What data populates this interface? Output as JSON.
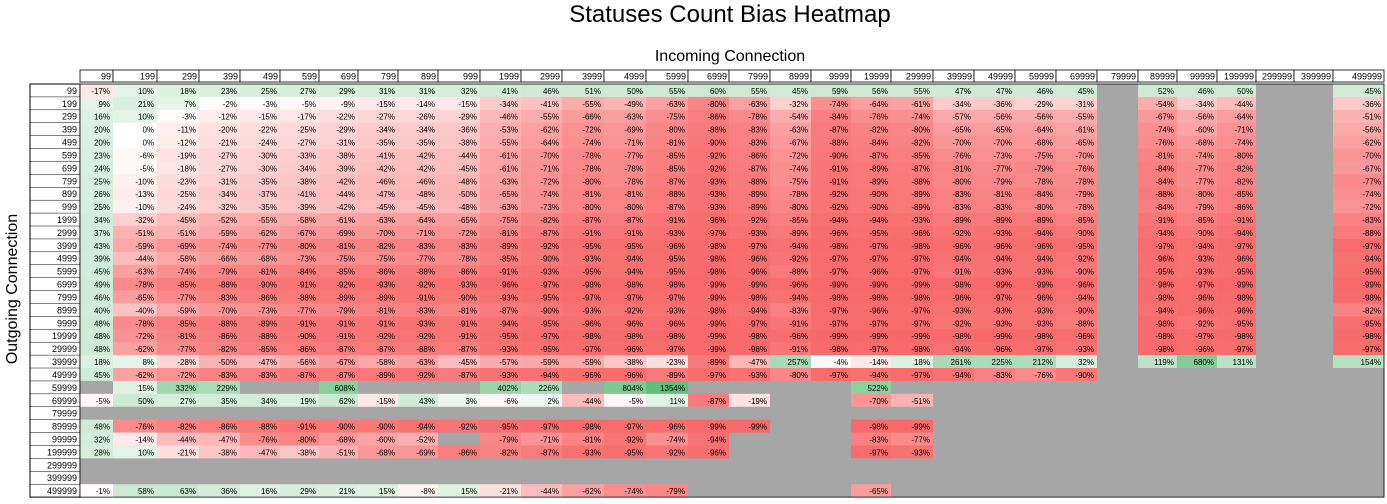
{
  "chart_data": {
    "type": "heatmap",
    "title": "Statuses Count Bias Heatmap",
    "xlabel": "Incoming Connection",
    "ylabel": "Outgoing Connection",
    "x": [
      "99",
      "199",
      "299",
      "399",
      "499",
      "599",
      "699",
      "799",
      "899",
      "999",
      "1999",
      "2999",
      "3999",
      "4999",
      "5999",
      "6999",
      "7999",
      "8999",
      "9999",
      "19999",
      "29999",
      "39999",
      "49999",
      "59999",
      "69999",
      "79999",
      "89999",
      "99999",
      "199999",
      "299999",
      "399999",
      "499999"
    ],
    "y": [
      "99",
      "199",
      "299",
      "399",
      "499",
      "599",
      "699",
      "799",
      "899",
      "999",
      "1999",
      "2999",
      "3999",
      "4999",
      "5999",
      "6999",
      "7999",
      "8999",
      "9999",
      "19999",
      "29999",
      "39999",
      "49999",
      "59999",
      "69999",
      "79999",
      "89999",
      "99999",
      "199999",
      "299999",
      "399999",
      "499999"
    ],
    "value_format": "percent",
    "missing_color": "#A6A6A6",
    "color_scale": {
      "min_color": "#F8696B",
      "mid_color": "#FFFFFF",
      "max_color": "#63BE7B",
      "mid_value": 0
    },
    "values": [
      [
        -17,
        10,
        18,
        23,
        25,
        27,
        29,
        31,
        31,
        32,
        41,
        46,
        51,
        50,
        55,
        60,
        55,
        45,
        59,
        56,
        55,
        47,
        47,
        46,
        45,
        null,
        52,
        46,
        50,
        null,
        null,
        45
      ],
      [
        9,
        21,
        7,
        -2,
        -3,
        -5,
        -9,
        -15,
        -14,
        -15,
        -34,
        -41,
        -55,
        -49,
        -63,
        -80,
        -63,
        -32,
        -74,
        -64,
        -61,
        -34,
        -36,
        -29,
        -31,
        null,
        -54,
        -34,
        -44,
        null,
        null,
        -36
      ],
      [
        16,
        10,
        -3,
        -12,
        -15,
        -17,
        -22,
        -27,
        -26,
        -29,
        -46,
        -55,
        -66,
        -63,
        -75,
        -86,
        -78,
        -54,
        -84,
        -76,
        -74,
        -57,
        -56,
        -56,
        -55,
        null,
        -67,
        -56,
        -64,
        null,
        null,
        -51
      ],
      [
        20,
        0,
        -11,
        -20,
        -22,
        -25,
        -29,
        -34,
        -34,
        -36,
        -53,
        -62,
        -72,
        -69,
        -80,
        -88,
        -83,
        -63,
        -87,
        -82,
        -80,
        -65,
        -65,
        -64,
        -61,
        null,
        -74,
        -60,
        -71,
        null,
        null,
        -56
      ],
      [
        20,
        0,
        -12,
        -21,
        -24,
        -27,
        -31,
        -35,
        -35,
        -38,
        -55,
        -64,
        -74,
        -71,
        -81,
        -90,
        -83,
        -67,
        -88,
        -84,
        -82,
        -70,
        -70,
        -68,
        -65,
        null,
        -76,
        -68,
        -74,
        null,
        null,
        -62
      ],
      [
        23,
        -6,
        -19,
        -27,
        -30,
        -33,
        -38,
        -41,
        -42,
        -44,
        -61,
        -70,
        -78,
        -77,
        -85,
        -92,
        -86,
        -72,
        -90,
        -87,
        -85,
        -76,
        -73,
        -75,
        -70,
        null,
        -81,
        -74,
        -80,
        null,
        null,
        -70
      ],
      [
        24,
        -5,
        -18,
        -27,
        -30,
        -34,
        -39,
        -42,
        -42,
        -45,
        -61,
        -71,
        -78,
        -78,
        -85,
        -92,
        -87,
        -74,
        -91,
        -89,
        -87,
        -81,
        -77,
        -79,
        -76,
        null,
        -84,
        -77,
        -82,
        null,
        null,
        -67
      ],
      [
        25,
        -10,
        -23,
        -31,
        -35,
        -38,
        -42,
        -46,
        -46,
        -48,
        -63,
        -72,
        -80,
        -78,
        -87,
        -93,
        -88,
        -75,
        -91,
        -89,
        -88,
        -80,
        -79,
        -78,
        -78,
        null,
        -84,
        -77,
        -82,
        null,
        null,
        -77
      ],
      [
        26,
        -13,
        -25,
        -34,
        -37,
        -41,
        -44,
        -47,
        -48,
        -50,
        -65,
        -74,
        -81,
        -81,
        -88,
        -93,
        -89,
        -78,
        -92,
        -90,
        -89,
        -83,
        -81,
        -84,
        -79,
        null,
        -88,
        -80,
        -85,
        null,
        null,
        -74
      ],
      [
        25,
        -10,
        -24,
        -32,
        -35,
        -39,
        -42,
        -45,
        -45,
        -48,
        -63,
        -73,
        -80,
        -80,
        -87,
        -93,
        -89,
        -80,
        -92,
        -90,
        -89,
        -83,
        -83,
        -80,
        -78,
        null,
        -84,
        -79,
        -86,
        null,
        null,
        -72
      ],
      [
        34,
        -32,
        -45,
        -52,
        -55,
        -58,
        -61,
        -63,
        -64,
        -65,
        -75,
        -82,
        -87,
        -87,
        -91,
        -96,
        -92,
        -85,
        -94,
        -94,
        -93,
        -89,
        -89,
        -89,
        -85,
        null,
        -91,
        -85,
        -91,
        null,
        null,
        -83
      ],
      [
        37,
        -51,
        -51,
        -59,
        -62,
        -67,
        -69,
        -70,
        -71,
        -72,
        -81,
        -87,
        -91,
        -91,
        -93,
        -97,
        -93,
        -89,
        -96,
        -95,
        -96,
        -92,
        -93,
        -94,
        -90,
        null,
        -94,
        -90,
        -94,
        null,
        null,
        -88
      ],
      [
        43,
        -59,
        -69,
        -74,
        -77,
        -80,
        -81,
        -82,
        -83,
        -83,
        -89,
        -92,
        -95,
        -95,
        -96,
        -98,
        -97,
        -94,
        -98,
        -97,
        -98,
        -96,
        -96,
        -96,
        -95,
        null,
        -97,
        -94,
        -97,
        null,
        null,
        -97
      ],
      [
        39,
        -44,
        -58,
        -66,
        -68,
        -73,
        -75,
        -75,
        -77,
        -78,
        -85,
        -90,
        -93,
        -94,
        -95,
        -98,
        -96,
        -92,
        -97,
        -97,
        -97,
        -94,
        -94,
        -94,
        -92,
        null,
        -96,
        -93,
        -96,
        null,
        null,
        -94
      ],
      [
        45,
        -63,
        -74,
        -79,
        -81,
        -84,
        -85,
        -86,
        -88,
        -86,
        -91,
        -93,
        -95,
        -94,
        -95,
        -98,
        -96,
        -88,
        -97,
        -96,
        -97,
        -91,
        -93,
        -93,
        -90,
        null,
        -95,
        -93,
        -95,
        null,
        null,
        -95
      ],
      [
        49,
        -78,
        -85,
        -88,
        -90,
        -91,
        -92,
        -93,
        -92,
        -93,
        -96,
        -97,
        -98,
        -98,
        -98,
        -99,
        -99,
        -96,
        -99,
        -99,
        -99,
        -98,
        -99,
        -99,
        -96,
        null,
        -98,
        -97,
        -99,
        null,
        null,
        -99
      ],
      [
        46,
        -65,
        -77,
        -83,
        -86,
        -88,
        -89,
        -89,
        -91,
        -90,
        -93,
        -95,
        -97,
        -97,
        -97,
        -99,
        -98,
        -94,
        -98,
        -98,
        -98,
        -96,
        -97,
        -96,
        -94,
        null,
        -98,
        -96,
        -98,
        null,
        null,
        -98
      ],
      [
        40,
        -40,
        -59,
        -70,
        -73,
        -77,
        -79,
        -81,
        -83,
        -81,
        -87,
        -90,
        -93,
        -92,
        -93,
        -98,
        -94,
        -83,
        -97,
        -96,
        -97,
        -93,
        -93,
        -93,
        -90,
        null,
        -94,
        -96,
        -96,
        null,
        null,
        -82
      ],
      [
        48,
        -78,
        -85,
        -88,
        -89,
        -91,
        -91,
        -91,
        -93,
        -91,
        -94,
        -95,
        -96,
        -96,
        -96,
        -99,
        -97,
        -91,
        -97,
        -97,
        -97,
        -92,
        -93,
        -93,
        -88,
        null,
        -98,
        -92,
        -95,
        null,
        null,
        -95
      ],
      [
        48,
        -72,
        -81,
        -86,
        -88,
        -90,
        -91,
        -92,
        -92,
        -91,
        -95,
        -97,
        -98,
        -98,
        -98,
        -99,
        -98,
        -96,
        -99,
        -99,
        -99,
        -98,
        -99,
        -98,
        -96,
        null,
        -98,
        -97,
        -98,
        null,
        null,
        -98
      ],
      [
        48,
        -62,
        -77,
        -82,
        -85,
        -86,
        -87,
        -87,
        -88,
        -87,
        -93,
        -95,
        -97,
        -96,
        -97,
        -99,
        -98,
        -91,
        -98,
        -97,
        -98,
        -94,
        -96,
        -97,
        -93,
        null,
        -98,
        -96,
        -97,
        null,
        null,
        -97
      ],
      [
        18,
        8,
        -28,
        -50,
        -47,
        -56,
        -67,
        -58,
        -63,
        -45,
        -57,
        -59,
        -59,
        -38,
        -23,
        -89,
        -47,
        257,
        -4,
        -14,
        18,
        261,
        225,
        212,
        32,
        null,
        119,
        680,
        131,
        null,
        null,
        154
      ],
      [
        45,
        -62,
        -72,
        -83,
        -83,
        -87,
        -87,
        -89,
        -92,
        -87,
        -93,
        -94,
        -96,
        -96,
        -89,
        -97,
        -93,
        -80,
        -97,
        -94,
        -97,
        -94,
        -83,
        -76,
        -90,
        null,
        null,
        null,
        null,
        null,
        null,
        null
      ],
      [
        null,
        15,
        332,
        229,
        null,
        null,
        608,
        null,
        null,
        null,
        402,
        226,
        null,
        804,
        1354,
        null,
        null,
        null,
        null,
        522,
        null,
        null,
        null,
        null,
        null,
        null,
        null,
        null,
        null,
        null,
        null,
        null
      ],
      [
        -5,
        50,
        27,
        35,
        34,
        19,
        62,
        -15,
        43,
        3,
        -6,
        2,
        -44,
        -5,
        11,
        -87,
        -19,
        null,
        null,
        -70,
        -51,
        null,
        null,
        null,
        null,
        null,
        null,
        null,
        null,
        null,
        null,
        null
      ],
      [
        null,
        null,
        null,
        null,
        null,
        null,
        null,
        null,
        null,
        null,
        null,
        null,
        null,
        null,
        null,
        null,
        null,
        null,
        null,
        null,
        null,
        null,
        null,
        null,
        null,
        null,
        null,
        null,
        null,
        null,
        null,
        null
      ],
      [
        48,
        -76,
        -82,
        -86,
        -88,
        -91,
        -90,
        -90,
        -94,
        -92,
        -95,
        -97,
        -98,
        -97,
        -96,
        -99,
        -99,
        null,
        null,
        -98,
        -99,
        null,
        null,
        null,
        null,
        null,
        null,
        null,
        null,
        null,
        null,
        null
      ],
      [
        32,
        -14,
        -44,
        -47,
        -76,
        -80,
        -68,
        -60,
        -52,
        null,
        -79,
        -71,
        -81,
        -92,
        -74,
        -94,
        null,
        null,
        null,
        -83,
        -77,
        null,
        null,
        null,
        null,
        null,
        null,
        null,
        null,
        null,
        null,
        null
      ],
      [
        28,
        10,
        -21,
        -38,
        -47,
        -38,
        -51,
        -68,
        -69,
        -86,
        -82,
        -87,
        -93,
        -95,
        -92,
        -96,
        null,
        null,
        null,
        -97,
        -93,
        null,
        null,
        null,
        null,
        null,
        null,
        null,
        null,
        null,
        null,
        null
      ],
      [
        null,
        null,
        null,
        null,
        null,
        null,
        null,
        null,
        null,
        null,
        null,
        null,
        null,
        null,
        null,
        null,
        null,
        null,
        null,
        null,
        null,
        null,
        null,
        null,
        null,
        null,
        null,
        null,
        null,
        null,
        null,
        null
      ],
      [
        null,
        null,
        null,
        null,
        null,
        null,
        null,
        null,
        null,
        null,
        null,
        null,
        null,
        null,
        null,
        null,
        null,
        null,
        null,
        null,
        null,
        null,
        null,
        null,
        null,
        null,
        null,
        null,
        null,
        null,
        null,
        null
      ],
      [
        -1,
        58,
        63,
        36,
        16,
        29,
        21,
        15,
        -8,
        15,
        -21,
        -44,
        -62,
        -74,
        -79,
        null,
        null,
        null,
        null,
        -65,
        null,
        null,
        null,
        null,
        null,
        null,
        null,
        null,
        null,
        null,
        null,
        null
      ]
    ]
  }
}
